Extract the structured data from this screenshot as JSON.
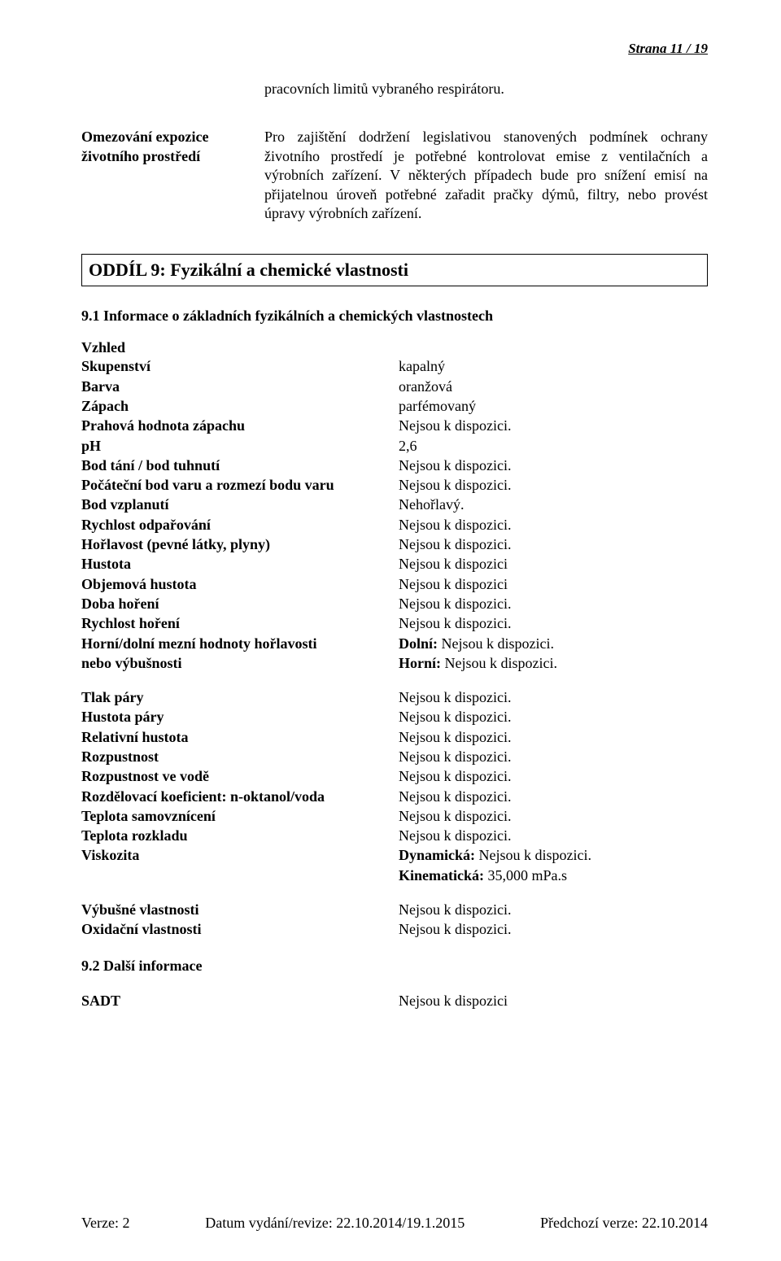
{
  "pageNumber": "Strana 11 / 19",
  "intro": {
    "topText": "pracovních limitů vybraného respirátoru.",
    "leftLabel": "Omezování expozice životního prostředí",
    "rightText": "Pro zajištění dodržení legislativou stanovených podmínek ochrany životního prostředí je potřebné kontrolovat emise z ventilačních a výrobních zařízení. V některých případech bude pro snížení emisí na přijatelnou úroveň potřebné zařadit pračky dýmů, filtry, nebo provést úpravy výrobních zařízení."
  },
  "section9": {
    "title": "ODDÍL 9: Fyzikální a chemické vlastnosti",
    "sub91": "9.1 Informace o základních fyzikálních a chemických vlastnostech",
    "vzhled": "Vzhled",
    "block1": {
      "keys": [
        "Skupenství",
        "Barva",
        "Zápach",
        "Prahová hodnota zápachu",
        "pH",
        "Bod tání / bod tuhnutí",
        "Počáteční bod varu a rozmezí bodu varu",
        "Bod vzplanutí",
        "Rychlost odpařování",
        "Hořlavost (pevné látky, plyny)",
        "Hustota",
        "Objemová hustota",
        "Doba hoření",
        "Rychlost hoření",
        "Horní/dolní mezní hodnoty hořlavosti",
        "nebo výbušnosti"
      ],
      "vals": [
        "kapalný",
        "oranžová",
        "parfémovaný",
        "Nejsou k dispozici.",
        "2,6",
        "Nejsou k dispozici.",
        "Nejsou k dispozici.",
        "Nehořlavý.",
        "Nejsou k dispozici.",
        "Nejsou k dispozici.",
        "Nejsou k dispozici",
        "Nejsou k dispozici",
        "Nejsou k dispozici.",
        "Nejsou k dispozici.",
        "<b>Dolní:</b> Nejsou k dispozici.",
        "<b>Horní:</b> Nejsou k dispozici."
      ]
    },
    "block2": {
      "keys": [
        "Tlak páry",
        "Hustota páry",
        "Relativní hustota",
        "Rozpustnost",
        "Rozpustnost ve vodě",
        "Rozdělovací koeficient: n-oktanol/voda",
        "Teplota samovznícení",
        "Teplota rozkladu",
        "Viskozita",
        ""
      ],
      "vals": [
        "Nejsou k dispozici.",
        "Nejsou k dispozici.",
        "Nejsou k dispozici.",
        "Nejsou k dispozici.",
        "Nejsou k dispozici.",
        "Nejsou k dispozici.",
        "Nejsou k dispozici.",
        "Nejsou k dispozici.",
        "<b>Dynamická:</b> Nejsou k dispozici.",
        "<b>Kinematická:</b> 35,000 mPa.s"
      ]
    },
    "block3": {
      "keys": [
        "Výbušné vlastnosti",
        "Oxidační vlastnosti"
      ],
      "vals": [
        "Nejsou k dispozici.",
        "Nejsou k dispozici."
      ]
    },
    "sub92": "9.2 Další informace",
    "sadtKey": "SADT",
    "sadtVal": "Nejsou k dispozici"
  },
  "footer": {
    "version": "Verze: 2",
    "date": "Datum vydání/revize: 22.10.2014/19.1.2015",
    "prev": "Předchozí verze: 22.10.2014"
  }
}
